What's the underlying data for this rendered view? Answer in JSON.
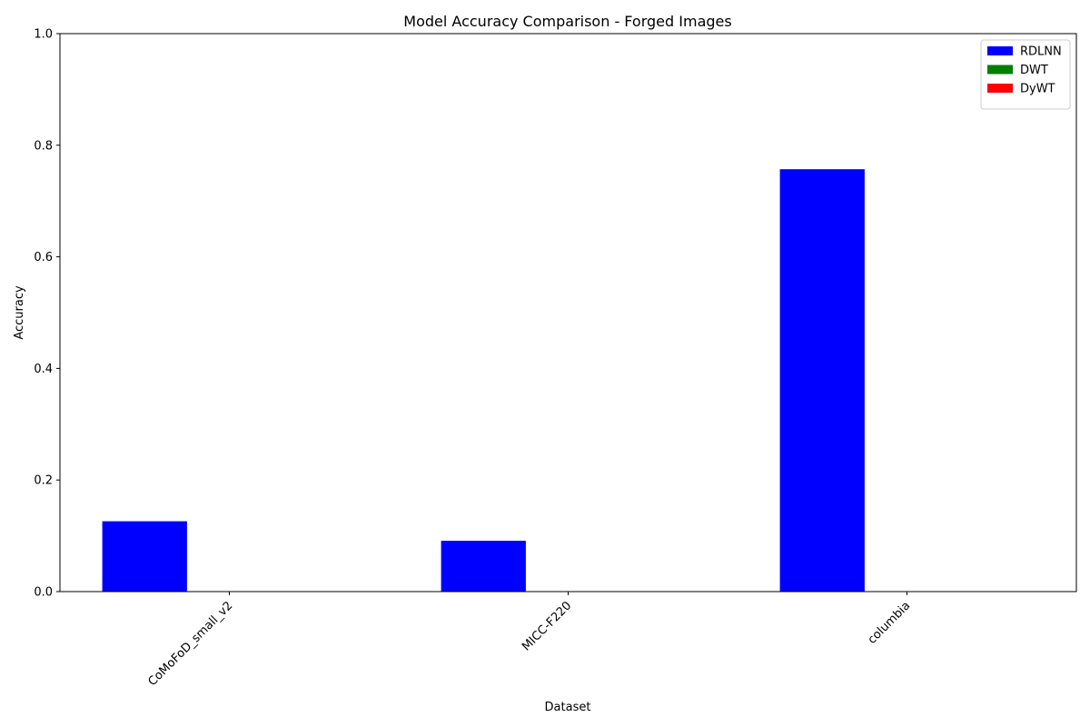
{
  "chart_data": {
    "type": "bar",
    "title": "Model Accuracy Comparison - Forged Images",
    "xlabel": "Dataset",
    "ylabel": "Accuracy",
    "categories": [
      "CoMoFoD_small_v2",
      "MICC-F220",
      "columbia"
    ],
    "series": [
      {
        "name": "RDLNN",
        "color": "#0000ff",
        "values": [
          0.126,
          0.091,
          0.757
        ]
      },
      {
        "name": "DWT",
        "color": "#008000",
        "values": [
          0,
          0,
          0
        ]
      },
      {
        "name": "DyWT",
        "color": "#ff0000",
        "values": [
          0,
          0,
          0
        ]
      }
    ],
    "ylim": [
      0,
      1.0
    ],
    "yticks": [
      "0.0",
      "0.2",
      "0.4",
      "0.6",
      "0.8",
      "1.0"
    ],
    "ytick_values": [
      0.0,
      0.2,
      0.4,
      0.6,
      0.8,
      1.0
    ],
    "grid": false,
    "legend_position": "top-right",
    "xtick_rotation": 45
  }
}
